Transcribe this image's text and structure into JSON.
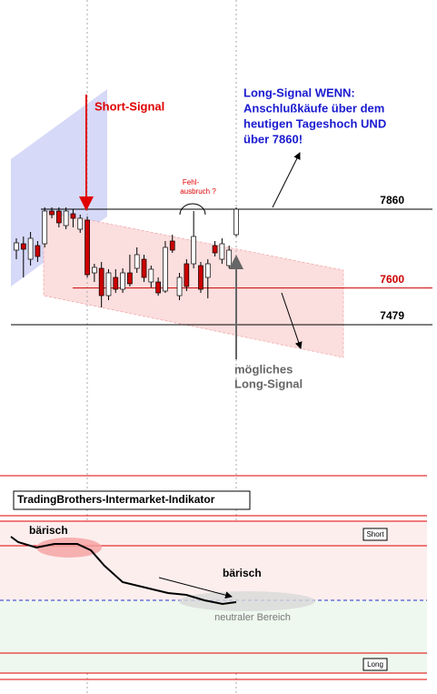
{
  "chart_data": {
    "type": "candlestick",
    "categories": [
      null,
      null,
      null,
      null,
      null,
      null,
      null,
      null,
      null,
      null,
      null,
      null,
      null,
      null,
      null,
      null,
      null,
      null,
      null,
      null,
      null,
      null,
      null,
      null,
      null,
      null,
      null,
      null,
      null,
      null,
      null,
      null
    ],
    "open": [
      7725,
      7746,
      7695,
      7740,
      7746,
      7854,
      7854,
      7806,
      7845,
      7794,
      7824,
      7650,
      7665,
      7575,
      7635,
      7596,
      7650,
      7665,
      7695,
      7620,
      7620,
      7590,
      7755,
      7575,
      7680,
      7680,
      7674,
      7635,
      7740,
      7695,
      7674,
      7776
    ],
    "high": [
      7764,
      7770,
      7785,
      7755,
      7866,
      7866,
      7866,
      7866,
      7860,
      7842,
      7836,
      7680,
      7686,
      7662,
      7662,
      7665,
      7710,
      7734,
      7710,
      7674,
      7635,
      7755,
      7776,
      7650,
      7695,
      7854,
      7686,
      7695,
      7755,
      7764,
      7740,
      7866
    ],
    "low": [
      7695,
      7635,
      7674,
      7686,
      7734,
      7830,
      7800,
      7794,
      7800,
      7782,
      7635,
      7620,
      7536,
      7560,
      7584,
      7584,
      7605,
      7650,
      7620,
      7602,
      7575,
      7584,
      7716,
      7560,
      7590,
      7665,
      7584,
      7566,
      7704,
      7680,
      7665,
      7770
    ],
    "close": [
      7749,
      7728,
      7764,
      7704,
      7854,
      7842,
      7815,
      7854,
      7830,
      7830,
      7644,
      7668,
      7575,
      7650,
      7596,
      7650,
      7614,
      7710,
      7635,
      7662,
      7584,
      7734,
      7725,
      7635,
      7605,
      7770,
      7596,
      7680,
      7716,
      7746,
      7725,
      7860
    ],
    "up_color": "#ffffff",
    "down_color": "#cc0000",
    "ylim": [
      7350,
      8550
    ],
    "levels": [
      7860,
      7600,
      7479
    ],
    "level_colors": [
      "#000000",
      "#cc0000",
      "#000000"
    ],
    "annotations": {
      "short_signal": "Short-Signal",
      "long_signal": [
        "Long-Signal WENN:",
        "Anschlußkäufe über dem",
        "heutigen Tageshoch UND",
        "über 7860!"
      ],
      "false_breakout": [
        "Fehl-",
        "ausbruch ?"
      ],
      "possible_long": [
        "mögliches",
        "Long-Signal"
      ]
    }
  },
  "indicator_panel": {
    "title": "TradingBrothers-Intermarket-Indikator",
    "short_label": "Short",
    "long_label": "Long",
    "bearish_left": "bärisch",
    "bearish_right": "bärisch",
    "neutral_zone": "neutraler Bereich"
  }
}
